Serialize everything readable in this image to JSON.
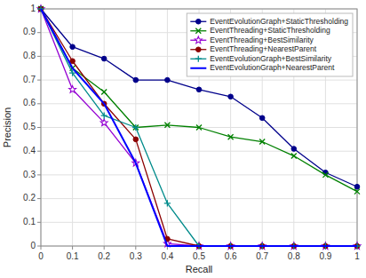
{
  "chart_data": {
    "type": "line",
    "xlabel": "Recall",
    "ylabel": "Precision",
    "x": [
      0.0,
      0.1,
      0.2,
      0.3,
      0.4,
      0.5,
      0.6,
      0.7,
      0.8,
      0.9,
      1.0
    ],
    "series": [
      {
        "name": "EventEvolutionGraph+StaticThresholding",
        "color": "#00008B",
        "marker": "circle",
        "values": [
          1.0,
          0.84,
          0.79,
          0.7,
          0.7,
          0.66,
          0.63,
          0.54,
          0.41,
          0.31,
          0.25
        ]
      },
      {
        "name": "EventThreading+StaticThresholding",
        "color": "#008000",
        "marker": "x",
        "values": [
          1.0,
          0.75,
          0.65,
          0.5,
          0.51,
          0.5,
          0.46,
          0.44,
          0.38,
          0.3,
          0.23
        ]
      },
      {
        "name": "EventThreading+BestSimilarity",
        "color": "#9400D3",
        "marker": "star",
        "values": [
          1.0,
          0.66,
          0.52,
          0.35,
          0.01,
          0.0,
          0.0,
          0.0,
          0.0,
          0.0,
          0.0
        ]
      },
      {
        "name": "EventThreading+NearestParent",
        "color": "#8B0000",
        "marker": "circle",
        "values": [
          1.0,
          0.78,
          0.6,
          0.45,
          0.03,
          0.0,
          0.0,
          0.0,
          0.0,
          0.0,
          0.0
        ]
      },
      {
        "name": "EventEvolutionGraph+BestSimilarity",
        "color": "#008B8B",
        "marker": "plus",
        "values": [
          1.0,
          0.73,
          0.55,
          0.5,
          0.18,
          0.0,
          0.0,
          0.0,
          0.0,
          0.0,
          0.0
        ]
      },
      {
        "name": "EventEvolutionGraph+NearestParent",
        "color": "#0000FF",
        "marker": "none",
        "values": [
          1.0,
          0.75,
          0.6,
          0.35,
          0.0,
          0.0,
          0.0,
          0.0,
          0.0,
          0.0,
          0.0
        ]
      }
    ],
    "xlim": [
      0.0,
      1.0
    ],
    "ylim": [
      0.0,
      1.0
    ],
    "xticks": [
      0.0,
      0.1,
      0.2,
      0.3,
      0.4,
      0.5,
      0.6,
      0.7,
      0.8,
      0.9,
      1.0
    ],
    "yticks": [
      0.0,
      0.1,
      0.2,
      0.3,
      0.4,
      0.5,
      0.6,
      0.7,
      0.8,
      0.9,
      1.0
    ],
    "grid": true,
    "legend": "upper right"
  }
}
